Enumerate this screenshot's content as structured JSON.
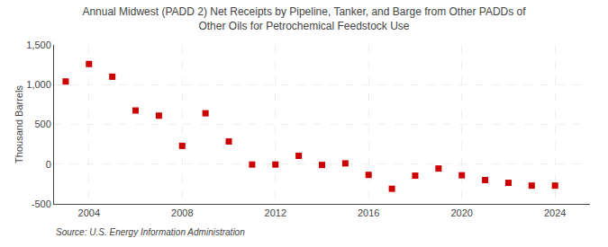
{
  "chart_data": {
    "type": "scatter",
    "title": "Annual Midwest (PADD 2) Net Receipts by Pipeline, Tanker, and Barge from Other PADDs of\nOther Oils for Petrochemical Feedstock Use",
    "ylabel": "Thousand Barrels",
    "annotations": [
      "Source: U.S. Energy Information Administration"
    ],
    "x": [
      2003,
      2004,
      2005,
      2006,
      2007,
      2008,
      2009,
      2010,
      2011,
      2012,
      2013,
      2014,
      2015,
      2016,
      2017,
      2018,
      2019,
      2020,
      2021,
      2022,
      2023,
      2024
    ],
    "values": [
      1040,
      1260,
      1100,
      675,
      610,
      230,
      640,
      285,
      -5,
      -5,
      105,
      -10,
      10,
      -135,
      -310,
      -145,
      -55,
      -140,
      -200,
      -235,
      -270,
      -270
    ],
    "color": "#cc0000",
    "marker": "square",
    "xlim": [
      2002.5,
      2025.5
    ],
    "xticks": [
      2004,
      2008,
      2012,
      2016,
      2020,
      2024
    ],
    "ylim": [
      -500,
      1500
    ],
    "yticks": [
      -500,
      0,
      500,
      {
        "value": 1000,
        "label": "1,000"
      },
      {
        "value": 1500,
        "label": "1,500"
      }
    ],
    "grid": true
  }
}
